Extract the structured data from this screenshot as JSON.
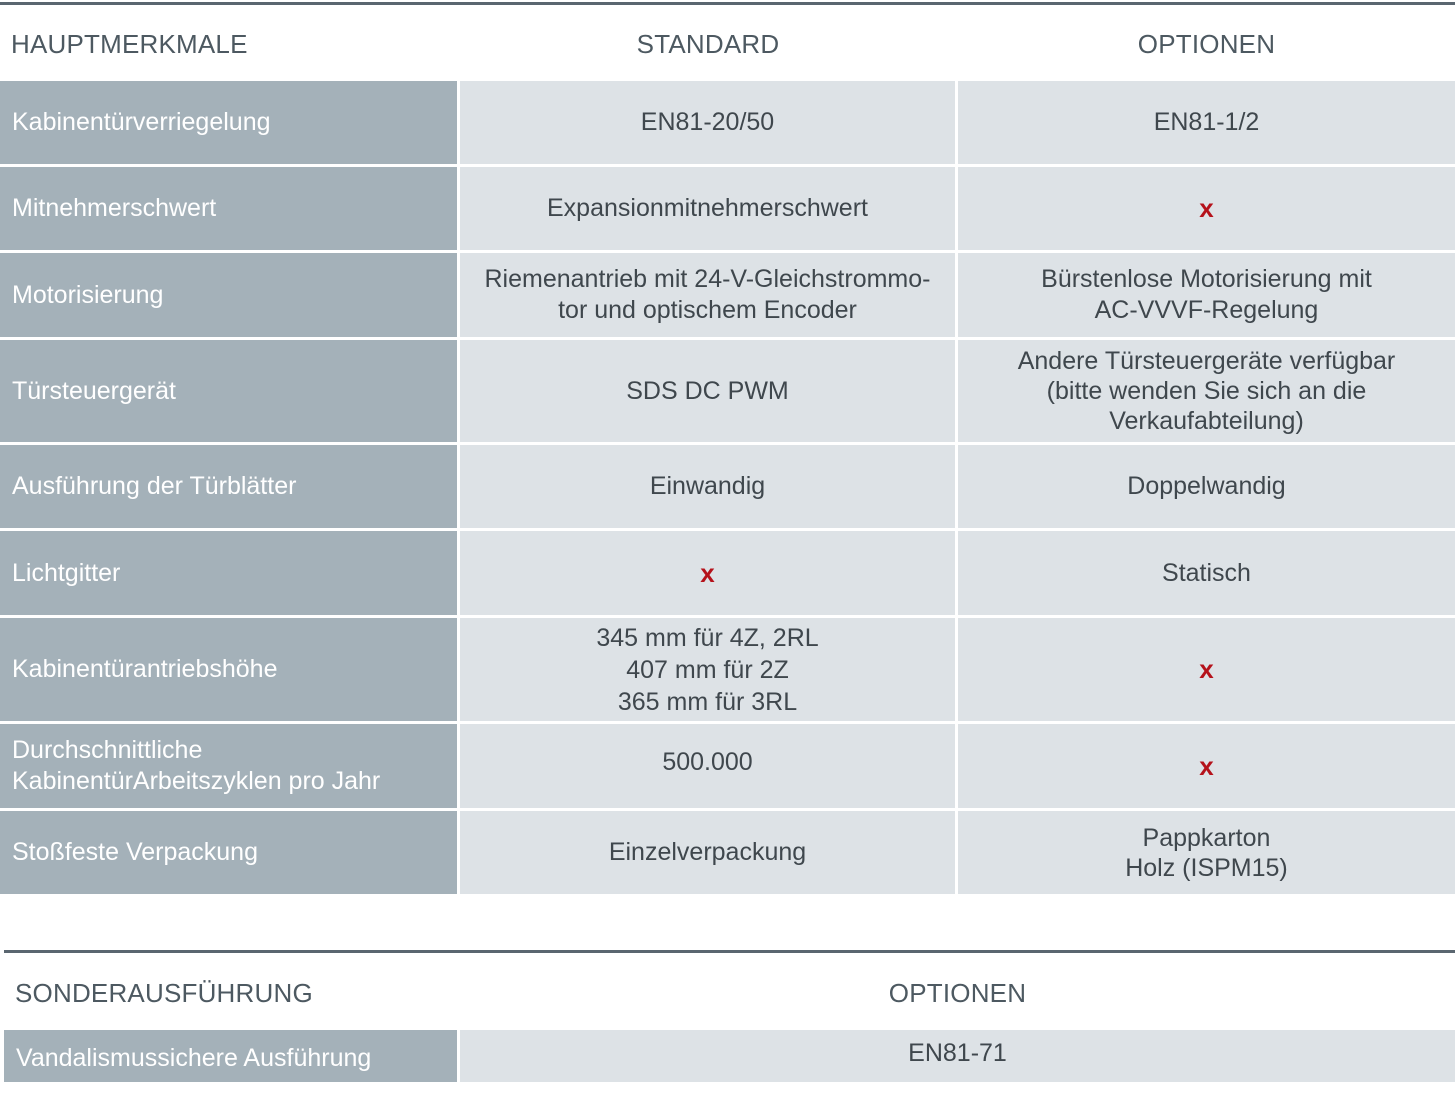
{
  "table1": {
    "headers": [
      "HAUPTMERKMALE",
      "STANDARD",
      "OPTIONEN"
    ],
    "rows": [
      {
        "label": "Kabinentürverriegelung",
        "standard": "EN81-20/50",
        "optionen": "EN81-1/2"
      },
      {
        "label": "Mitnehmerschwert",
        "standard": "Expansionmitnehmerschwert",
        "optionen": "x"
      },
      {
        "label": "Motorisierung",
        "standard": "Riemenantrieb mit 24-V-Gleichstrommo-\ntor und optischem Encoder",
        "optionen": "Bürstenlose Motorisierung mit\nAC-VVVF-Regelung"
      },
      {
        "label": "Türsteuergerät",
        "standard": "SDS DC PWM",
        "optionen": "Andere Türsteuergeräte verfügbar\n(bitte wenden Sie sich an die\nVerkaufabteilung)"
      },
      {
        "label": "Ausführung der Türblätter",
        "standard": "Einwandig",
        "optionen": "Doppelwandig"
      },
      {
        "label": "Lichtgitter",
        "standard": "x",
        "optionen": "Statisch"
      },
      {
        "label": "Kabinentürantriebshöhe",
        "standard": "345 mm für 4Z, 2RL\n407 mm für 2Z\n365 mm für 3RL",
        "optionen": "x"
      },
      {
        "label": "Durchschnittliche\nKabinentürArbeitszyklen pro Jahr",
        "standard": "500.000",
        "optionen": "x"
      },
      {
        "label": "Stoßfeste Verpackung",
        "standard": "Einzelverpackung",
        "optionen": "Pappkarton\nHolz (ISPM15)"
      }
    ]
  },
  "table2": {
    "headers": [
      "SONDERAUSFÜHRUNG",
      "OPTIONEN"
    ],
    "rows": [
      {
        "label": "Vandalismussichere Ausführung",
        "optionen": "EN81-71"
      }
    ]
  },
  "colors": {
    "label_bg": "#a4b1b9",
    "value_bg": "#dde2e6",
    "rule": "#5a6670",
    "mark": "#b5121b"
  }
}
